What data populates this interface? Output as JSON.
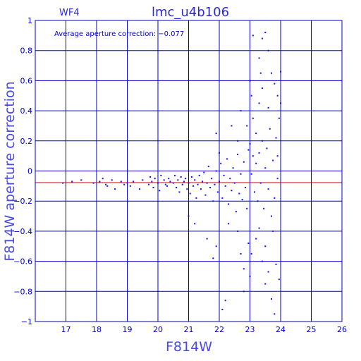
{
  "chart_data": {
    "type": "scatter",
    "title": "lmc_u4b106",
    "panel_label": "WF4",
    "annotation": "Average aperture correction: −0.077",
    "xlabel": "F814W",
    "ylabel": "F814W aperture correction",
    "xlim": [
      16,
      26
    ],
    "ylim": [
      -1,
      1
    ],
    "xticks": [
      "17",
      "18",
      "19",
      "20",
      "21",
      "22",
      "23",
      "24",
      "25",
      "26"
    ],
    "yticks": [
      "−1",
      "−0.8",
      "−0.6",
      "−0.4",
      "−0.2",
      "0",
      "0.2",
      "0.4",
      "0.6",
      "0.8",
      "1"
    ],
    "grid": true,
    "reference_line": {
      "y": -0.077,
      "color": "#cc0000"
    },
    "colors": {
      "axes": "#0000c8",
      "points": "#1010ff",
      "reference": "#cc0000"
    },
    "points": [
      [
        16.9,
        -0.08
      ],
      [
        17.2,
        -0.07
      ],
      [
        17.5,
        -0.06
      ],
      [
        17.9,
        -0.08
      ],
      [
        18.1,
        -0.07
      ],
      [
        18.2,
        -0.05
      ],
      [
        18.3,
        -0.09
      ],
      [
        18.35,
        -0.1
      ],
      [
        18.5,
        -0.06
      ],
      [
        18.6,
        -0.12
      ],
      [
        18.8,
        -0.07
      ],
      [
        18.9,
        -0.09
      ],
      [
        19.0,
        -0.08
      ],
      [
        19.1,
        -0.1
      ],
      [
        19.2,
        -0.07
      ],
      [
        19.4,
        -0.12
      ],
      [
        19.5,
        -0.06
      ],
      [
        19.7,
        -0.09
      ],
      [
        19.75,
        -0.04
      ],
      [
        19.8,
        -0.07
      ],
      [
        19.85,
        -0.11
      ],
      [
        19.9,
        -0.05
      ],
      [
        20.0,
        -0.08
      ],
      [
        20.05,
        -0.13
      ],
      [
        20.1,
        -0.03
      ],
      [
        20.2,
        -0.06
      ],
      [
        20.25,
        -0.09
      ],
      [
        20.3,
        -0.1
      ],
      [
        20.35,
        -0.05
      ],
      [
        20.4,
        -0.07
      ],
      [
        20.5,
        -0.08
      ],
      [
        20.55,
        -0.03
      ],
      [
        20.6,
        -0.11
      ],
      [
        20.65,
        -0.06
      ],
      [
        20.7,
        -0.14
      ],
      [
        20.75,
        -0.04
      ],
      [
        20.8,
        -0.09
      ],
      [
        20.85,
        -0.07
      ],
      [
        20.9,
        -0.05
      ],
      [
        20.95,
        -0.12
      ],
      [
        21.0,
        -0.08
      ],
      [
        21.05,
        -0.15
      ],
      [
        21.1,
        -0.04
      ],
      [
        21.15,
        -0.1
      ],
      [
        21.2,
        -0.06
      ],
      [
        21.25,
        -0.18
      ],
      [
        21.3,
        -0.09
      ],
      [
        21.35,
        -0.03
      ],
      [
        21.4,
        -0.12
      ],
      [
        21.45,
        -0.07
      ],
      [
        21.5,
        -0.01
      ],
      [
        21.55,
        -0.16
      ],
      [
        21.6,
        -0.08
      ],
      [
        21.65,
        0.03
      ],
      [
        21.7,
        -0.11
      ],
      [
        21.75,
        -0.05
      ],
      [
        21.8,
        -0.2
      ],
      [
        21.85,
        -0.09
      ],
      [
        21.9,
        0.0
      ],
      [
        21.95,
        -0.14
      ],
      [
        22.0,
        -0.07
      ],
      [
        22.05,
        0.05
      ],
      [
        22.1,
        -0.18
      ],
      [
        22.15,
        -0.03
      ],
      [
        22.2,
        -0.1
      ],
      [
        22.25,
        0.08
      ],
      [
        22.3,
        -0.22
      ],
      [
        22.35,
        -0.05
      ],
      [
        22.4,
        -0.13
      ],
      [
        22.45,
        0.02
      ],
      [
        22.5,
        -0.08
      ],
      [
        22.55,
        -0.27
      ],
      [
        22.6,
        0.11
      ],
      [
        22.65,
        -0.15
      ],
      [
        22.7,
        -0.02
      ],
      [
        22.75,
        -0.19
      ],
      [
        22.8,
        0.06
      ],
      [
        22.85,
        -0.11
      ],
      [
        22.9,
        -0.25
      ],
      [
        22.95,
        0.14
      ],
      [
        21.2,
        -0.35
      ],
      [
        21.0,
        -0.3
      ],
      [
        21.6,
        -0.45
      ],
      [
        21.8,
        -0.58
      ],
      [
        21.9,
        -0.5
      ],
      [
        22.3,
        -0.35
      ],
      [
        22.6,
        -0.4
      ],
      [
        22.7,
        -0.55
      ],
      [
        22.8,
        -0.65
      ],
      [
        23.0,
        -0.7
      ],
      [
        22.2,
        -0.86
      ],
      [
        22.1,
        -0.92
      ],
      [
        22.8,
        -0.8
      ],
      [
        23.2,
        0.25
      ],
      [
        23.1,
        0.35
      ],
      [
        23.3,
        0.45
      ],
      [
        23.4,
        0.55
      ],
      [
        23.2,
        -0.45
      ],
      [
        23.4,
        -0.6
      ],
      [
        23.5,
        -0.75
      ],
      [
        23.7,
        -0.85
      ],
      [
        23.8,
        -0.95
      ],
      [
        23.95,
        -0.72
      ],
      [
        23.1,
        0.9
      ],
      [
        23.4,
        0.88
      ],
      [
        23.5,
        0.92
      ],
      [
        23.3,
        0.75
      ],
      [
        23.6,
        0.8
      ],
      [
        23.7,
        0.65
      ],
      [
        23.9,
        0.5
      ],
      [
        24.0,
        0.66
      ],
      [
        24.0,
        0.45
      ],
      [
        23.0,
        0.18
      ],
      [
        23.05,
        -0.02
      ],
      [
        23.1,
        0.1
      ],
      [
        23.15,
        -0.14
      ],
      [
        23.2,
        0.05
      ],
      [
        23.25,
        -0.2
      ],
      [
        23.3,
        0.12
      ],
      [
        23.35,
        -0.08
      ],
      [
        23.4,
        0.2
      ],
      [
        23.45,
        -0.25
      ],
      [
        23.5,
        0.02
      ],
      [
        23.55,
        0.15
      ],
      [
        23.6,
        -0.12
      ],
      [
        23.65,
        0.28
      ],
      [
        23.7,
        -0.3
      ],
      [
        23.75,
        0.07
      ],
      [
        23.8,
        -0.18
      ],
      [
        23.85,
        0.22
      ],
      [
        23.9,
        -0.05
      ],
      [
        23.95,
        0.35
      ],
      [
        22.0,
        0.12
      ],
      [
        21.9,
        0.25
      ],
      [
        22.4,
        0.3
      ],
      [
        22.6,
        0.2
      ],
      [
        22.9,
        0.3
      ],
      [
        22.7,
        0.4
      ],
      [
        23.05,
        0.5
      ],
      [
        23.0,
        0.6
      ],
      [
        23.35,
        0.65
      ],
      [
        23.6,
        0.42
      ],
      [
        23.8,
        0.58
      ],
      [
        23.9,
        0.1
      ],
      [
        23.75,
        -0.4
      ],
      [
        23.5,
        -0.5
      ],
      [
        23.3,
        -0.38
      ],
      [
        23.05,
        -0.55
      ],
      [
        22.95,
        -0.48
      ],
      [
        23.85,
        -0.62
      ],
      [
        23.6,
        -0.67
      ]
    ]
  }
}
